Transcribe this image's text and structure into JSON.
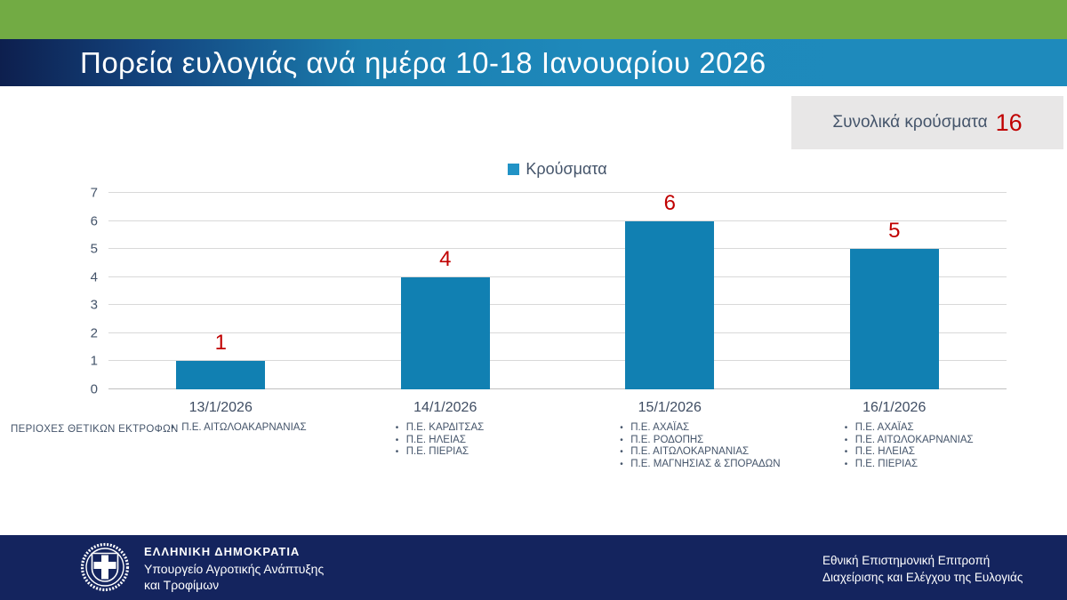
{
  "header": {
    "title": "Πορεία ευλογιάς ανά ημέρα 10-18 Ιανουαρίου 2026"
  },
  "summary": {
    "label": "Συνολικά κρούσματα",
    "value": "16"
  },
  "legend": {
    "label": "Κρούσματα"
  },
  "chart_data": {
    "type": "bar",
    "title": "Πορεία ευλογιάς ανά ημέρα 10-18 Ιανουαρίου 2026",
    "categories": [
      "13/1/2026",
      "14/1/2026",
      "15/1/2026",
      "16/1/2026"
    ],
    "series": [
      {
        "name": "Κρούσματα",
        "values": [
          1,
          4,
          6,
          5
        ]
      }
    ],
    "data_labels": [
      "1",
      "4",
      "6",
      "5"
    ],
    "ylim": [
      0,
      7
    ],
    "yticks": [
      0,
      1,
      2,
      3,
      4,
      5,
      6,
      7
    ],
    "grid": true,
    "legend_position": "top",
    "colors": {
      "bar": "#1180B2",
      "legend_swatch": "#2193C6",
      "data_label": "#C00000",
      "grid": "#D9D9D9",
      "axis_text": "#44546A"
    }
  },
  "regions": {
    "row_label": "ΠΕΡΙΟΧΕΣ ΘΕΤΙΚΩΝ ΕΚΤΡΟΦΩΝ",
    "columns": [
      {
        "items": [
          "Π.Ε. ΑΙΤΩΛΟΑΚΑΡΝΑΝΙΑΣ"
        ]
      },
      {
        "items": [
          "Π.Ε. ΚΑΡΔΙΤΣΑΣ",
          "Π.Ε. ΗΛΕΙΑΣ",
          "Π.Ε. ΠΙΕΡΙΑΣ"
        ]
      },
      {
        "items": [
          "Π.Ε. ΑΧΑΪΑΣ",
          "Π.Ε. ΡΟΔΟΠΗΣ",
          "Π.Ε. ΑΙΤΩΛΟΚΑΡΝΑΝΙΑΣ",
          "Π.Ε. ΜΑΓΝΗΣΙΑΣ & ΣΠΟΡΑΔΩΝ"
        ]
      },
      {
        "items": [
          "Π.Ε. ΑΧΑΪΑΣ",
          "Π.Ε. ΑΙΤΩΛΟΚΑΡΝΑΝΙΑΣ",
          "Π.Ε. ΗΛΕΙΑΣ",
          "Π.Ε. ΠΙΕΡΙΑΣ"
        ]
      }
    ]
  },
  "footer": {
    "org_name": "ΕΛΛΗΝΙΚΗ ΔΗΜΟΚΡΑΤΙΑ",
    "ministry_line1": "Υπουργείο Αγροτικής Ανάπτυξης",
    "ministry_line2": "και Τροφίμων",
    "committee_line1": "Εθνική Επιστημονική Επιτροπή",
    "committee_line2": "Διαχείρισης και Ελέγχου της Ευλογιάς"
  }
}
